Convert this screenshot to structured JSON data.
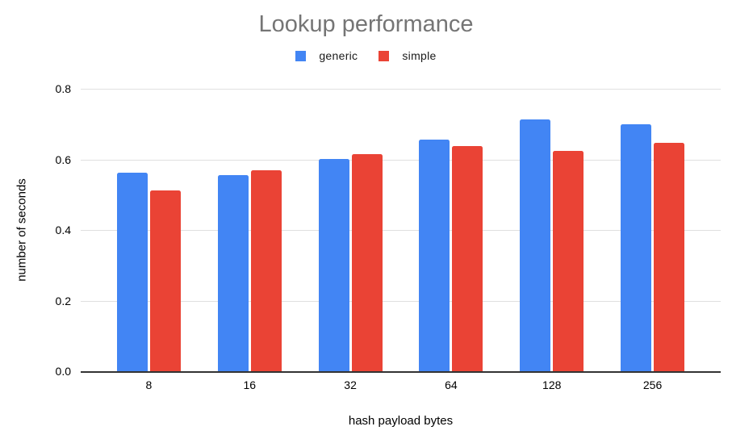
{
  "title": "Lookup performance",
  "colors": {
    "series_generic": "#4285F4",
    "series_simple": "#EA4335",
    "title_text": "#757575",
    "axis_text": "#000000",
    "gridline": "#e0e0e0",
    "baseline": "#333333",
    "background": "#ffffff"
  },
  "legend": {
    "position": "top",
    "items": [
      {
        "label": "generic",
        "color": "#4285F4"
      },
      {
        "label": "simple",
        "color": "#EA4335"
      }
    ]
  },
  "chart_data": {
    "type": "bar",
    "title": "Lookup performance",
    "categories": [
      "8",
      "16",
      "32",
      "64",
      "128",
      "256"
    ],
    "series": [
      {
        "name": "generic",
        "color": "#4285F4",
        "values": [
          0.562,
          0.556,
          0.601,
          0.655,
          0.713,
          0.7
        ]
      },
      {
        "name": "simple",
        "color": "#EA4335",
        "values": [
          0.512,
          0.57,
          0.614,
          0.638,
          0.624,
          0.648
        ]
      }
    ],
    "xlabel": "hash payload bytes",
    "ylabel": "number of seconds",
    "ylim": [
      0,
      0.8
    ],
    "yticks": [
      0.0,
      0.2,
      0.4,
      0.6,
      0.8
    ],
    "ytick_labels": [
      "0.0",
      "0.2",
      "0.4",
      "0.6",
      "0.8"
    ],
    "grid": true,
    "legend_position": "top"
  }
}
